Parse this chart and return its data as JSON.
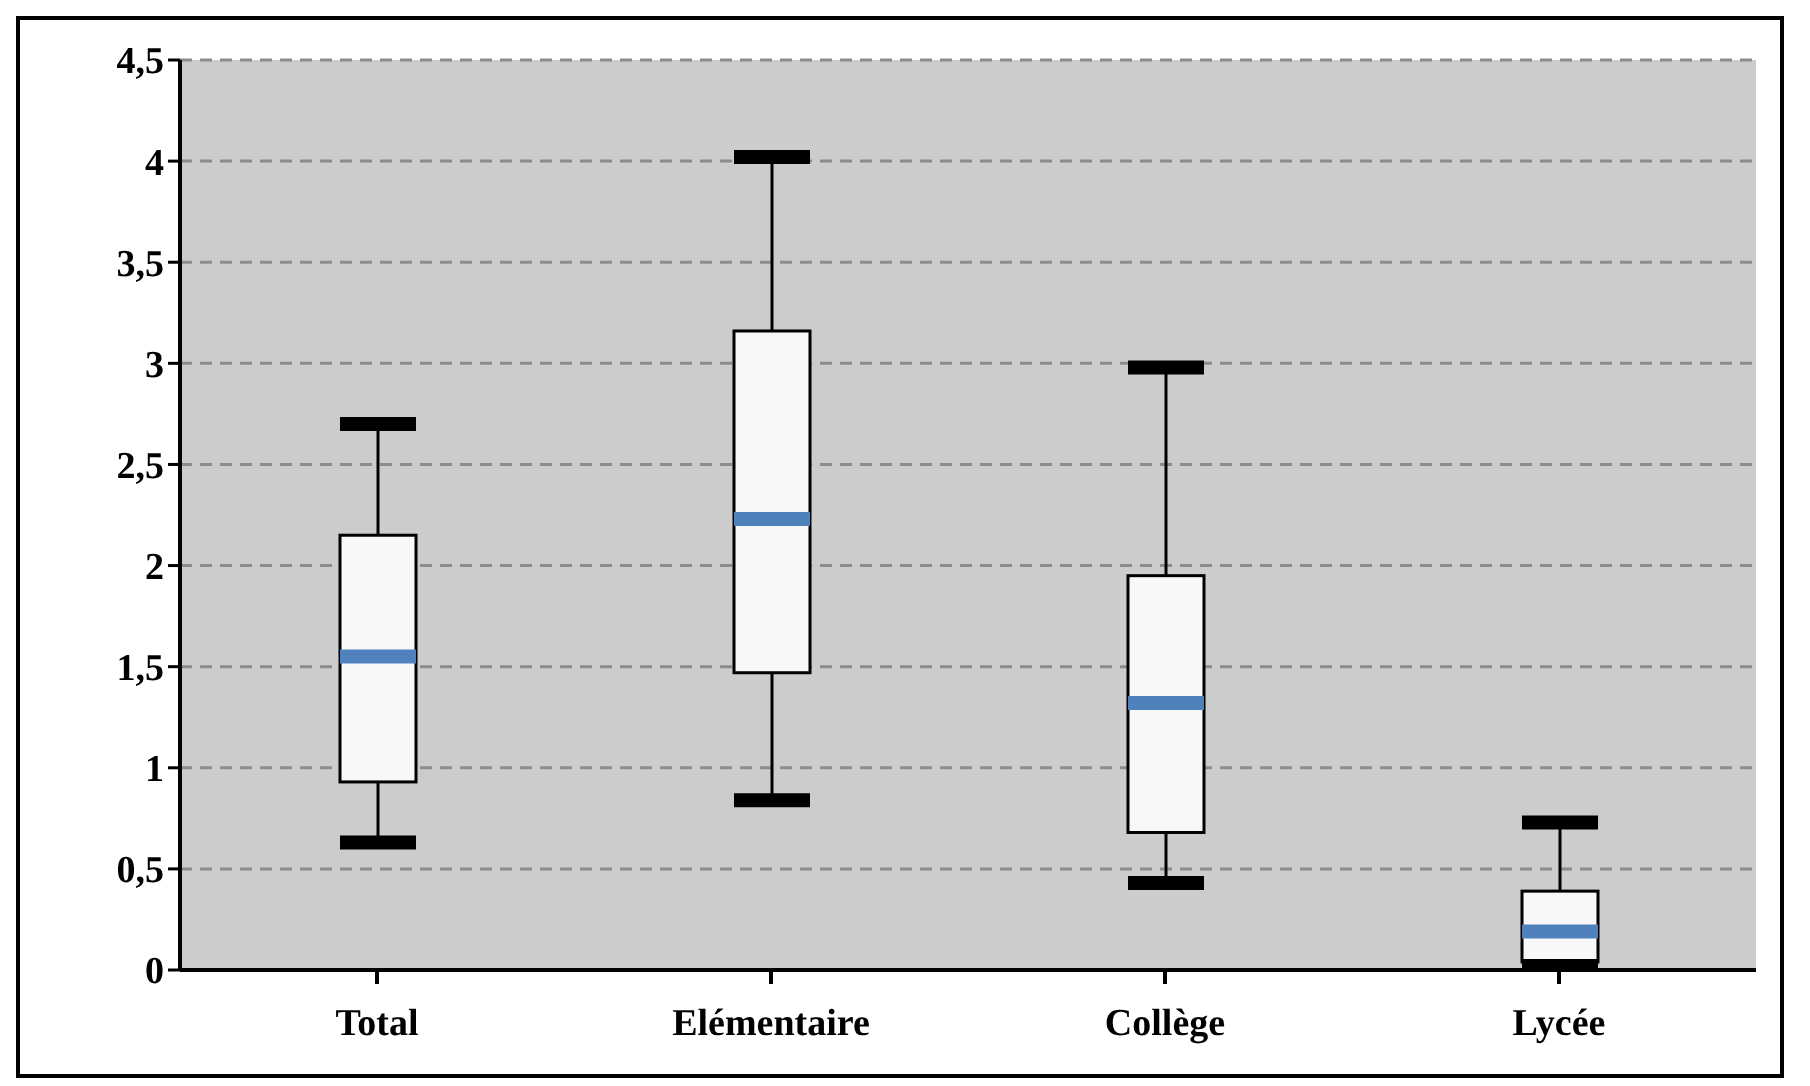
{
  "chart_data": {
    "type": "box",
    "categories": [
      "Total",
      "Elémentaire",
      "Collège",
      "Lycée"
    ],
    "boxes": [
      {
        "low": 0.63,
        "q1": 0.93,
        "median": 1.55,
        "q3": 2.15,
        "high": 2.7
      },
      {
        "low": 0.84,
        "q1": 1.47,
        "median": 2.23,
        "q3": 3.16,
        "high": 4.02
      },
      {
        "low": 0.43,
        "q1": 0.68,
        "median": 1.32,
        "q3": 1.95,
        "high": 2.98
      },
      {
        "low": 0.02,
        "q1": 0.04,
        "median": 0.19,
        "q3": 0.39,
        "high": 0.73
      }
    ],
    "color": "#f8f8f8",
    "ylim": [
      0,
      4.5
    ],
    "yticks": [
      0,
      {
        "value": 0.5,
        "label": "0,5"
      },
      1,
      {
        "value": 1.5,
        "label": "1,5"
      },
      2,
      {
        "value": 2.5,
        "label": "2,5"
      },
      3,
      {
        "value": 3.5,
        "label": "3,5"
      },
      4,
      {
        "value": 4.5,
        "label": "4,5"
      }
    ],
    "grid": "y"
  }
}
